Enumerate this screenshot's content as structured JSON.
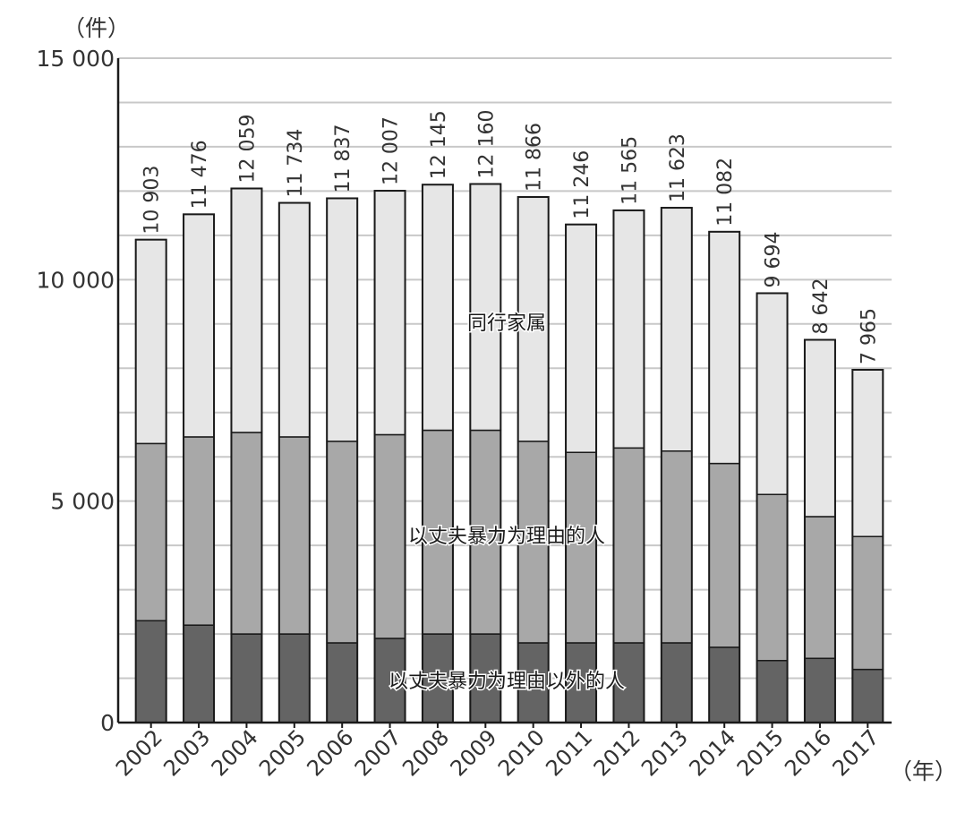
{
  "chart_data": {
    "type": "bar",
    "stacked": true,
    "y_unit": "（件）",
    "x_unit": "（年）",
    "ylim": [
      0,
      15000
    ],
    "yticks": [
      0,
      5000,
      10000,
      15000
    ],
    "ytick_labels": [
      "0",
      "5 000",
      "10 000",
      "15 000"
    ],
    "grid": true,
    "categories": [
      "2002",
      "2003",
      "2004",
      "2005",
      "2006",
      "2007",
      "2008",
      "2009",
      "2010",
      "2011",
      "2012",
      "2013",
      "2014",
      "2015",
      "2016",
      "2017"
    ],
    "totals": [
      10903,
      11476,
      12059,
      11734,
      11837,
      12007,
      12145,
      12160,
      11866,
      11246,
      11565,
      11623,
      11082,
      9694,
      8642,
      7965
    ],
    "total_labels": [
      "10 903",
      "11 476",
      "12 059",
      "11 734",
      "11 837",
      "12 007",
      "12 145",
      "12 160",
      "11 866",
      "11 246",
      "11 565",
      "11 623",
      "11 082",
      "9 694",
      "8 642",
      "7 965"
    ],
    "series": [
      {
        "name": "以丈夫暴力为理由以外的人",
        "color": "#646464",
        "values": [
          2300,
          2200,
          2000,
          2000,
          1800,
          1900,
          2000,
          2000,
          1800,
          1800,
          1800,
          1800,
          1700,
          1400,
          1450,
          1200
        ]
      },
      {
        "name": "以丈夫暴力为理由的人",
        "color": "#a8a8a8",
        "values": [
          4000,
          4250,
          4550,
          4450,
          4550,
          4600,
          4600,
          4600,
          4550,
          4300,
          4400,
          4330,
          4150,
          3750,
          3200,
          3000
        ]
      },
      {
        "name": "同行家属",
        "color": "#e6e6e6",
        "values": [
          4603,
          5026,
          5509,
          5284,
          5487,
          5507,
          5545,
          5560,
          5516,
          5146,
          5365,
          5493,
          5232,
          4544,
          3992,
          3765
        ]
      }
    ]
  }
}
